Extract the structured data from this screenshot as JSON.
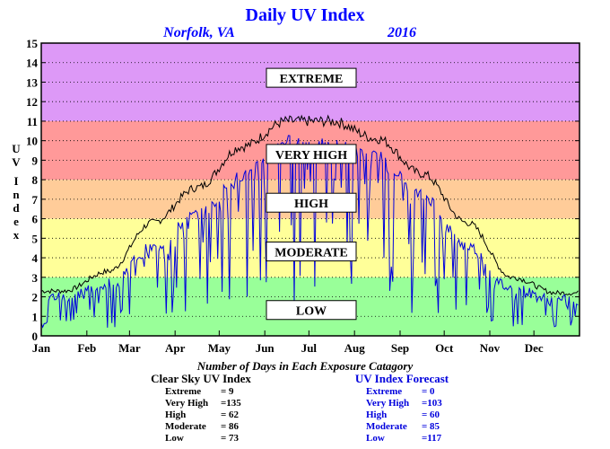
{
  "header": {
    "title": "Daily UV Index",
    "location": "Norfolk, VA",
    "year": "2016"
  },
  "colors": {
    "extreme": "#dd99f7",
    "very_high": "#ff9999",
    "high": "#ffcc99",
    "moderate": "#ffff99",
    "low": "#99ff99",
    "clear_sky_line": "#000000",
    "forecast_line": "#0000dd",
    "title": "#0000ff",
    "border": "#000000"
  },
  "chart_data": {
    "type": "line",
    "title": "Daily UV Index",
    "xlabel": "",
    "ylabel": "UV Index",
    "ylim": [
      0,
      15
    ],
    "yticks": [
      0,
      1,
      2,
      3,
      4,
      5,
      6,
      7,
      8,
      9,
      10,
      11,
      12,
      13,
      14,
      15
    ],
    "grid": "horizontal dotted",
    "categories": [
      "Jan",
      "Feb",
      "Mar",
      "Apr",
      "May",
      "Jun",
      "Jul",
      "Aug",
      "Sep",
      "Oct",
      "Nov",
      "Dec"
    ],
    "bands": [
      {
        "label": "EXTREME",
        "from": 11,
        "to": 15,
        "color_key": "extreme"
      },
      {
        "label": "VERY HIGH",
        "from": 8,
        "to": 11,
        "color_key": "very_high"
      },
      {
        "label": "HIGH",
        "from": 6,
        "to": 8,
        "color_key": "high"
      },
      {
        "label": "MODERATE",
        "from": 3,
        "to": 6,
        "color_key": "moderate"
      },
      {
        "label": "LOW",
        "from": 0,
        "to": 3,
        "color_key": "low"
      }
    ],
    "series": [
      {
        "name": "Clear Sky UV Index",
        "color_key": "clear_sky_line",
        "monthly_values": [
          2.3,
          3.3,
          5.8,
          7.6,
          9.7,
          11.0,
          11.0,
          10.1,
          8.3,
          5.8,
          3.0,
          2.2
        ]
      },
      {
        "name": "UV Index Forecast",
        "color_key": "forecast_line",
        "monthly_values": [
          2.0,
          2.7,
          4.5,
          6.2,
          8.2,
          10.0,
          9.8,
          9.2,
          7.2,
          4.6,
          2.4,
          1.8
        ]
      }
    ]
  },
  "summary": {
    "caption": "Number of Days in Each Exposure Catagory",
    "clear_sky": {
      "heading": "Clear Sky UV Index",
      "rows": [
        {
          "label": "Extreme",
          "value": "= 9"
        },
        {
          "label": "Very High",
          "value": "=135"
        },
        {
          "label": "High",
          "value": "= 62"
        },
        {
          "label": "Moderate",
          "value": "= 86"
        },
        {
          "label": "Low",
          "value": "= 73"
        }
      ]
    },
    "forecast": {
      "heading": "UV Index Forecast",
      "rows": [
        {
          "label": "Extreme",
          "value": "= 0"
        },
        {
          "label": "Very High",
          "value": "=103"
        },
        {
          "label": "High",
          "value": "= 60"
        },
        {
          "label": "Moderate",
          "value": "= 85"
        },
        {
          "label": "Low",
          "value": "=117"
        }
      ]
    }
  }
}
